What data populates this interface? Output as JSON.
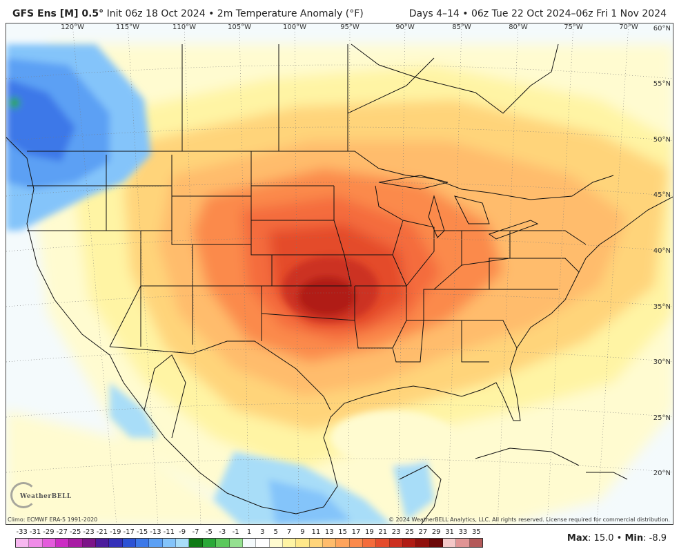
{
  "header": {
    "model": "GFS Ens [M] 0.5",
    "degree": "°",
    "init": "Init 06z 18 Oct 2024",
    "sep": "•",
    "field": "2m Temperature Anomaly (°F)",
    "range": "Days 4–14 • 06z Tue 22 Oct 2024–06z Fri 1 Nov 2024"
  },
  "map": {
    "lon_labels": [
      "120°W",
      "115°W",
      "110°W",
      "105°W",
      "100°W",
      "95°W",
      "90°W",
      "85°W",
      "80°W",
      "75°W",
      "70°W"
    ],
    "lat_labels": [
      "60°N",
      "55°N",
      "50°N",
      "45°N",
      "40°N",
      "35°N",
      "30°N",
      "25°N",
      "20°N"
    ],
    "logo_text": "WeatherBELL",
    "climo": "Climo: ECMWF ERA-5 1991-2020",
    "copyright": "© 2024 WeatherBELL Analytics, LLC. All rights reserved. License required for commercial distribution."
  },
  "colorbar": {
    "labels": [
      "-33",
      "-31",
      "-29",
      "-27",
      "-25",
      "-23",
      "-21",
      "-19",
      "-17",
      "-15",
      "-13",
      "-11",
      "-9",
      "-7",
      "-5",
      "-3",
      "-1",
      "1",
      "3",
      "5",
      "7",
      "9",
      "11",
      "13",
      "15",
      "17",
      "19",
      "21",
      "23",
      "25",
      "27",
      "29",
      "31",
      "33",
      "35"
    ],
    "colors": [
      "#f7b8f0",
      "#f08ce8",
      "#e45cdc",
      "#cc2cc4",
      "#a81ca4",
      "#7c1488",
      "#4c1c9c",
      "#3430b8",
      "#2c52d4",
      "#3c78e8",
      "#5ca0f4",
      "#84c4fa",
      "#a8ddf8",
      "#0f7a16",
      "#2aa838",
      "#5cc85c",
      "#94e090",
      "#f4fafc",
      "#ffffff",
      "#fffbd0",
      "#fff4a4",
      "#ffe88a",
      "#ffd47a",
      "#ffbc6c",
      "#ffa45c",
      "#fb8a4c",
      "#f46c3c",
      "#e44c2c",
      "#cc3020",
      "#b01c14",
      "#90100c",
      "#6c0808",
      "#f4c8c8",
      "#e09494",
      "#b45a5a"
    ]
  },
  "stats": {
    "max_label": "Max",
    "max": "15.0",
    "sep": "•",
    "min_label": "Min",
    "min": "-8.9"
  }
}
